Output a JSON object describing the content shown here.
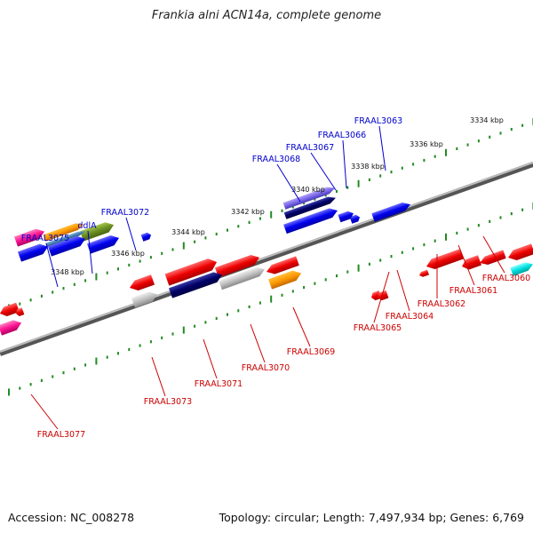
{
  "title": "Frankia alni ACN14a, complete genome",
  "accession": "Accession: NC_008278",
  "topology": "Topology: circular; Length: 7,497,934 bp; Genes: 6,769",
  "colors": {
    "forward_label": "#0000cc",
    "reverse_label": "#cc0000",
    "backbone": "#8a8a8a",
    "tick": "#228b22"
  },
  "scale_labels": [
    "3334 kbp",
    "3336 kbp",
    "3338 kbp",
    "3340 kbp",
    "3342 kbp",
    "3344 kbp",
    "3346 kbp",
    "3348 kbp"
  ],
  "forward_labels": [
    "FRAAL3063",
    "FRAAL3066",
    "FRAAL3067",
    "FRAAL3068",
    "FRAAL3072",
    "ddlA",
    "FRAAL3075"
  ],
  "reverse_labels": [
    "FRAAL3060",
    "FRAAL3061",
    "FRAAL3062",
    "FRAAL3064",
    "FRAAL3065",
    "FRAAL3069",
    "FRAAL3070",
    "FRAAL3071",
    "FRAAL3073",
    "FRAAL3077"
  ]
}
